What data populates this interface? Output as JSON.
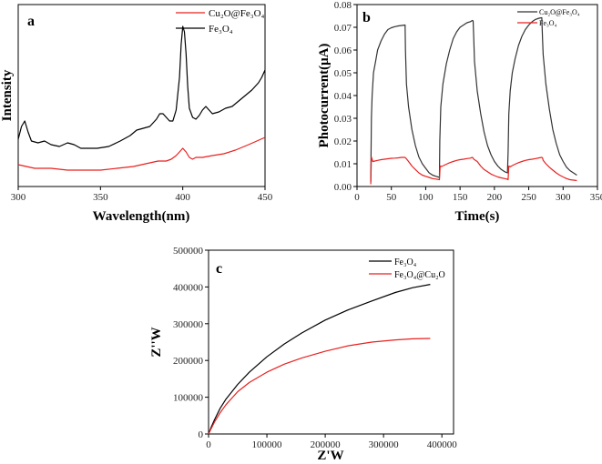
{
  "colors": {
    "black_series": "#000000",
    "red_series": "#e8211f",
    "gray_series": "#333333"
  },
  "chart_data": [
    {
      "type": "line",
      "panel_label": "a",
      "xlabel": "Wavelength(nm)",
      "ylabel": "Intensity",
      "xlim": [
        300,
        450
      ],
      "ylim": [
        0,
        1
      ],
      "x_ticks": [
        "300",
        "350",
        "400",
        "450"
      ],
      "legend": [
        {
          "label": "Cu₂O@Fe₃O₄",
          "color": "#e8211f"
        },
        {
          "label": "Fe₃O₄",
          "color": "#000000"
        }
      ],
      "legend_position": "top-right",
      "series": [
        {
          "name": "Fe₃O₄",
          "color": "#000000",
          "x": [
            300,
            302,
            304,
            306,
            308,
            312,
            316,
            320,
            325,
            330,
            334,
            338,
            342,
            348,
            355,
            362,
            368,
            372,
            376,
            380,
            384,
            386,
            388,
            390,
            392,
            394,
            396,
            398,
            399,
            400,
            401,
            402,
            403,
            404,
            406,
            408,
            410,
            412,
            414,
            416,
            418,
            422,
            426,
            430,
            434,
            438,
            442,
            446,
            448,
            450
          ],
          "y": [
            0.26,
            0.33,
            0.36,
            0.3,
            0.25,
            0.24,
            0.25,
            0.23,
            0.22,
            0.24,
            0.23,
            0.21,
            0.21,
            0.21,
            0.22,
            0.25,
            0.28,
            0.31,
            0.32,
            0.33,
            0.37,
            0.4,
            0.4,
            0.38,
            0.36,
            0.36,
            0.42,
            0.6,
            0.78,
            0.88,
            0.85,
            0.73,
            0.55,
            0.43,
            0.38,
            0.37,
            0.39,
            0.42,
            0.44,
            0.42,
            0.4,
            0.41,
            0.43,
            0.44,
            0.47,
            0.5,
            0.53,
            0.57,
            0.6,
            0.64
          ]
        },
        {
          "name": "Cu₂O@Fe₃O₄",
          "color": "#e8211f",
          "x": [
            300,
            305,
            310,
            320,
            330,
            340,
            350,
            360,
            370,
            380,
            385,
            390,
            393,
            396,
            398,
            400,
            402,
            404,
            406,
            408,
            412,
            418,
            425,
            432,
            440,
            445,
            450
          ],
          "y": [
            0.12,
            0.11,
            0.1,
            0.1,
            0.09,
            0.09,
            0.09,
            0.1,
            0.11,
            0.13,
            0.14,
            0.14,
            0.15,
            0.17,
            0.19,
            0.21,
            0.19,
            0.16,
            0.15,
            0.16,
            0.16,
            0.17,
            0.18,
            0.2,
            0.23,
            0.25,
            0.27
          ]
        }
      ]
    },
    {
      "type": "line",
      "panel_label": "b",
      "xlabel": "Time(s)",
      "ylabel": "Photocurrent(μA)",
      "xlim": [
        0,
        350
      ],
      "ylim": [
        0,
        0.08
      ],
      "x_ticks": [
        "0",
        "50",
        "100",
        "150",
        "200",
        "250",
        "300",
        "350"
      ],
      "y_ticks": [
        "0.00",
        "0.01",
        "0.02",
        "0.03",
        "0.04",
        "0.05",
        "0.06",
        "0.07",
        "0.08"
      ],
      "legend": [
        {
          "label": "Cu₂O@Fe₃O₄",
          "color": "#333333"
        },
        {
          "label": "Fe₃O₄",
          "color": "#e8211f"
        }
      ],
      "legend_position": "top-right",
      "series": [
        {
          "name": "Cu₂O@Fe₃O₄",
          "color": "#333333",
          "x": [
            20,
            21,
            22,
            24,
            27,
            30,
            35,
            40,
            45,
            50,
            55,
            60,
            65,
            70,
            70.5,
            72,
            75,
            80,
            85,
            90,
            95,
            100,
            105,
            110,
            115,
            120,
            120.5,
            122,
            125,
            130,
            135,
            140,
            145,
            150,
            155,
            160,
            165,
            168,
            169,
            170,
            171,
            175,
            180,
            185,
            190,
            195,
            200,
            205,
            210,
            215,
            219,
            220,
            221,
            223,
            226,
            230,
            235,
            240,
            245,
            250,
            255,
            260,
            265,
            269,
            270,
            271,
            275,
            280,
            285,
            290,
            295,
            300,
            305,
            310,
            315,
            320
          ],
          "y": [
            0.002,
            0.03,
            0.04,
            0.05,
            0.055,
            0.06,
            0.064,
            0.067,
            0.069,
            0.0698,
            0.0703,
            0.0706,
            0.0708,
            0.071,
            0.06,
            0.045,
            0.035,
            0.025,
            0.018,
            0.013,
            0.01,
            0.008,
            0.006,
            0.005,
            0.0045,
            0.004,
            0.02,
            0.035,
            0.045,
            0.054,
            0.06,
            0.065,
            0.068,
            0.07,
            0.071,
            0.072,
            0.0725,
            0.073,
            0.0728,
            0.065,
            0.055,
            0.042,
            0.032,
            0.024,
            0.018,
            0.014,
            0.011,
            0.009,
            0.0075,
            0.0065,
            0.006,
            0.015,
            0.032,
            0.042,
            0.05,
            0.056,
            0.062,
            0.066,
            0.069,
            0.071,
            0.0725,
            0.0735,
            0.074,
            0.0742,
            0.065,
            0.058,
            0.045,
            0.034,
            0.025,
            0.019,
            0.014,
            0.011,
            0.0085,
            0.007,
            0.006,
            0.005
          ],
          "note": "photocurrent response, light on/off cycles"
        },
        {
          "name": "Fe₃O₄",
          "color": "#e8211f",
          "x": [
            20,
            21,
            23,
            26,
            30,
            35,
            40,
            45,
            50,
            55,
            60,
            65,
            70,
            71,
            75,
            80,
            85,
            90,
            95,
            100,
            105,
            110,
            115,
            120,
            121,
            123,
            126,
            130,
            135,
            140,
            145,
            150,
            155,
            160,
            165,
            168,
            169,
            170,
            175,
            180,
            185,
            190,
            195,
            200,
            205,
            210,
            215,
            219,
            220,
            221,
            223,
            226,
            230,
            235,
            240,
            245,
            250,
            255,
            260,
            265,
            269,
            270,
            271,
            275,
            280,
            285,
            290,
            295,
            300,
            305,
            310,
            315,
            320
          ],
          "y": [
            0.001,
            0.013,
            0.011,
            0.0112,
            0.0115,
            0.0118,
            0.012,
            0.0122,
            0.0124,
            0.0125,
            0.0126,
            0.0128,
            0.0128,
            0.0125,
            0.011,
            0.009,
            0.0075,
            0.006,
            0.005,
            0.0045,
            0.004,
            0.0035,
            0.0033,
            0.003,
            0.009,
            0.0088,
            0.0092,
            0.0098,
            0.0105,
            0.011,
            0.0115,
            0.0118,
            0.012,
            0.0123,
            0.0125,
            0.0128,
            0.0125,
            0.012,
            0.011,
            0.009,
            0.0075,
            0.0065,
            0.0055,
            0.0048,
            0.0042,
            0.0038,
            0.0035,
            0.0032,
            0.003,
            0.009,
            0.0087,
            0.0092,
            0.0098,
            0.0105,
            0.011,
            0.0115,
            0.0118,
            0.012,
            0.0123,
            0.0126,
            0.0128,
            0.0126,
            0.0115,
            0.01,
            0.0085,
            0.0072,
            0.006,
            0.005,
            0.0042,
            0.0035,
            0.003,
            0.0028,
            0.0026
          ]
        }
      ]
    },
    {
      "type": "line",
      "panel_label": "c",
      "xlabel": "Z'W",
      "ylabel": "Z''W",
      "xlim": [
        0,
        420000
      ],
      "ylim": [
        0,
        500000
      ],
      "x_ticks": [
        "0",
        "100000",
        "200000",
        "300000",
        "400000"
      ],
      "y_ticks": [
        "0",
        "100000",
        "200000",
        "300000",
        "400000",
        "500000"
      ],
      "legend": [
        {
          "label": "Fe₃O₄",
          "color": "#000000"
        },
        {
          "label": "Fe₃O₄@Cu₂O",
          "color": "#e8211f"
        }
      ],
      "legend_position": "top-right",
      "series": [
        {
          "name": "Fe₃O₄",
          "color": "#000000",
          "x": [
            0,
            5000,
            10000,
            20000,
            30000,
            50000,
            70000,
            100000,
            130000,
            160000,
            200000,
            240000,
            280000,
            320000,
            350000,
            380000
          ],
          "y": [
            0,
            20000,
            38000,
            70000,
            95000,
            135000,
            168000,
            210000,
            245000,
            275000,
            310000,
            338000,
            362000,
            385000,
            398000,
            407000
          ]
        },
        {
          "name": "Fe₃O₄@Cu₂O",
          "color": "#e8211f",
          "x": [
            0,
            5000,
            10000,
            20000,
            30000,
            50000,
            70000,
            100000,
            130000,
            160000,
            200000,
            240000,
            280000,
            320000,
            350000,
            380000
          ],
          "y": [
            0,
            16000,
            32000,
            58000,
            80000,
            115000,
            140000,
            168000,
            190000,
            207000,
            225000,
            240000,
            250000,
            256000,
            259000,
            260000
          ]
        }
      ]
    }
  ]
}
